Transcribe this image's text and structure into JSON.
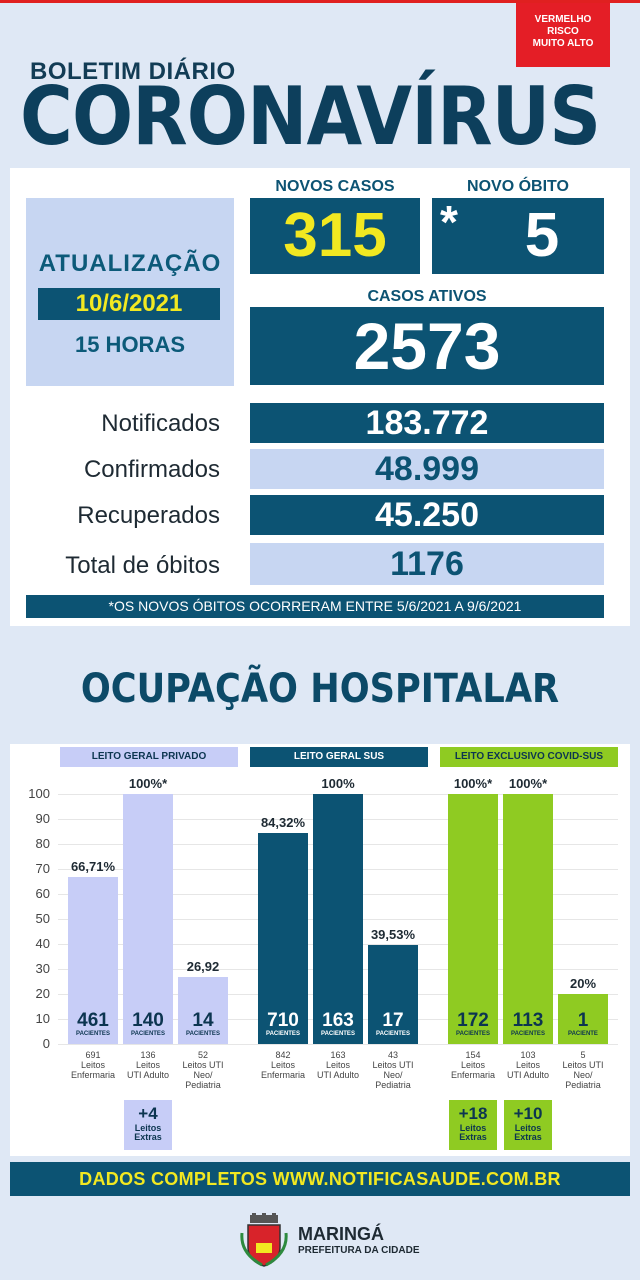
{
  "alert": {
    "line1": "VERMELHO",
    "line2": "RISCO",
    "line3": "MUITO ALTO"
  },
  "header": {
    "subtitle": "BOLETIM DIÁRIO",
    "title": "CORONAVÍRUS"
  },
  "update": {
    "label": "ATUALIZAÇÃO",
    "date": "10/6/2021",
    "hour": "15 HORAS"
  },
  "new_cases": {
    "label": "NOVOS CASOS",
    "value": "315"
  },
  "new_death": {
    "label": "NOVO ÓBITO",
    "asterisk": "*",
    "value": "5"
  },
  "active_cases": {
    "label": "CASOS ATIVOS",
    "value": "2573"
  },
  "stats": [
    {
      "label": "Notificados",
      "value": "183.772"
    },
    {
      "label": "Confirmados",
      "value": "48.999"
    },
    {
      "label": "Recuperados",
      "value": "45.250"
    },
    {
      "label": "Total de óbitos",
      "value": "1176"
    }
  ],
  "note": "*OS NOVOS ÓBITOS OCORRERAM ENTRE 5/6/2021 A 9/6/2021",
  "hospital": {
    "title": "OCUPAÇÃO HOSPITALAR",
    "y_ticks": [
      "100",
      "90",
      "80",
      "70",
      "60",
      "50",
      "40",
      "30",
      "20",
      "10",
      "0"
    ],
    "groups": [
      {
        "name": "LEITO GERAL PRIVADO",
        "color": "#c7cdf7",
        "text_color": "#0c3550",
        "head_bg": "#c7cdf7",
        "bars": [
          {
            "pct": 66.71,
            "pct_label": "66,71%",
            "patients": "461",
            "plabel": "PACIENTES",
            "cap1": "691",
            "cap2": "Leitos",
            "cap3": "Enfermaria",
            "cap4": ""
          },
          {
            "pct": 100,
            "pct_label": "100%*",
            "patients": "140",
            "plabel": "PACIENTES",
            "cap1": "136",
            "cap2": "Leitos",
            "cap3": "UTI Adulto",
            "cap4": ""
          },
          {
            "pct": 26.92,
            "pct_label": "26,92",
            "patients": "14",
            "plabel": "PACIENTES",
            "cap1": "52",
            "cap2": "Leitos UTI",
            "cap3": "Neo/",
            "cap4": "Pediatria"
          }
        ],
        "extras": [
          {
            "slot": 1,
            "n": "+4",
            "l1": "Leitos",
            "l2": "Extras"
          }
        ]
      },
      {
        "name": "LEITO GERAL SUS",
        "color": "#0c5373",
        "text_color": "#ffffff",
        "head_bg": "#0c5373",
        "bars": [
          {
            "pct": 84.32,
            "pct_label": "84,32%",
            "patients": "710",
            "plabel": "PACIENTES",
            "cap1": "842",
            "cap2": "Leitos",
            "cap3": "Enfermaria",
            "cap4": ""
          },
          {
            "pct": 100,
            "pct_label": "100%",
            "patients": "163",
            "plabel": "PACIENTES",
            "cap1": "163",
            "cap2": "Leitos",
            "cap3": "UTI Adulto",
            "cap4": ""
          },
          {
            "pct": 39.53,
            "pct_label": "39,53%",
            "patients": "17",
            "plabel": "PACIENTES",
            "cap1": "43",
            "cap2": "Leitos UTI",
            "cap3": "Neo/",
            "cap4": "Pediatria"
          }
        ],
        "extras": []
      },
      {
        "name": "LEITO EXCLUSIVO COVID-SUS",
        "color": "#8fcb22",
        "text_color": "#0c3550",
        "head_bg": "#8fcb22",
        "bars": [
          {
            "pct": 100,
            "pct_label": "100%*",
            "patients": "172",
            "plabel": "PACIENTES",
            "cap1": "154",
            "cap2": "Leitos",
            "cap3": "Enfermaria",
            "cap4": ""
          },
          {
            "pct": 100,
            "pct_label": "100%*",
            "patients": "113",
            "plabel": "PACIENTES",
            "cap1": "103",
            "cap2": "Leitos",
            "cap3": "UTI Adulto",
            "cap4": ""
          },
          {
            "pct": 20,
            "pct_label": "20%",
            "patients": "1",
            "plabel": "PACIENTE",
            "cap1": "5",
            "cap2": "Leitos UTI",
            "cap3": "Neo/",
            "cap4": "Pediatria"
          }
        ],
        "extras": [
          {
            "slot": 0,
            "n": "+18",
            "l1": "Leitos",
            "l2": "Extras"
          },
          {
            "slot": 1,
            "n": "+10",
            "l1": "Leitos",
            "l2": "Extras"
          }
        ]
      }
    ]
  },
  "footer": {
    "text": "DADOS COMPLETOS  WWW.NOTIFICASAUDE.COM.BR"
  },
  "brand": {
    "city": "MARINGÁ",
    "sub": "PREFEITURA DA CIDADE"
  }
}
